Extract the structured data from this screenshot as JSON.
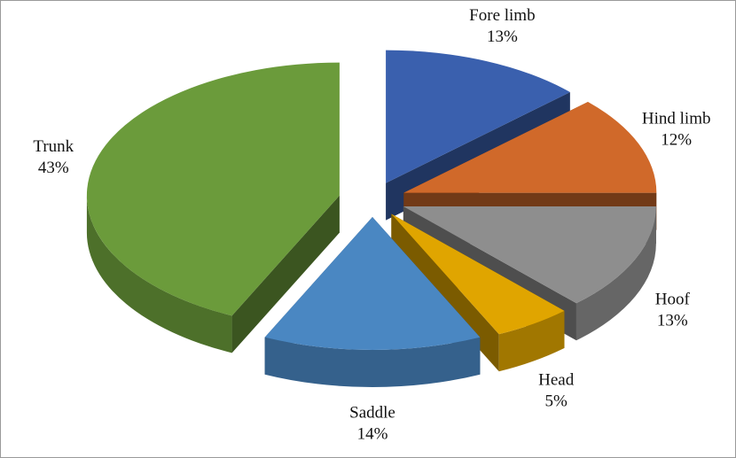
{
  "chart_data": {
    "type": "pie",
    "categories": [
      "Fore limb",
      "Hind limb",
      "Hoof",
      "Head",
      "Saddle",
      "Trunk"
    ],
    "values": [
      13,
      12,
      13,
      5,
      14,
      43
    ],
    "value_labels": [
      "13%",
      "12%",
      "13%",
      "5%",
      "14%",
      "43%"
    ],
    "colors": [
      "#3a60ae",
      "#d0692a",
      "#8e8e8e",
      "#e0a500",
      "#4a87c2",
      "#6b9b3b"
    ]
  }
}
